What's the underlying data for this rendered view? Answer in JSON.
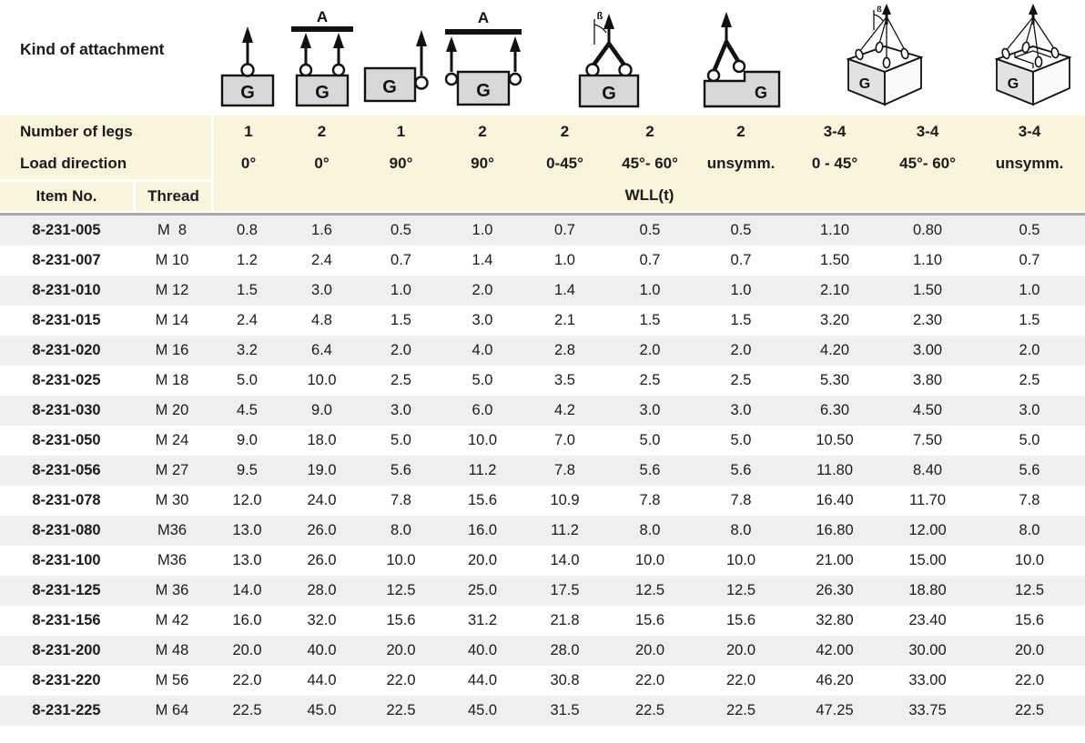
{
  "header": {
    "kind_of_attachment": "Kind of attachment",
    "number_of_legs_label": "Number of legs",
    "load_direction_label": "Load direction",
    "item_no_label": "Item No.",
    "thread_label": "Thread",
    "wll_label": "WLL(t)",
    "legs": [
      "1",
      "2",
      "1",
      "2",
      "2",
      "2",
      "2",
      "3-4",
      "3-4",
      "3-4"
    ],
    "load_directions": [
      "0°",
      "0°",
      "90°",
      "90°",
      "0-45°",
      "45°- 60°",
      "unsymm.",
      "0 - 45°",
      "45°- 60°",
      "unsymm."
    ]
  },
  "diagrams": {
    "g_label": "G",
    "a_label": "A",
    "beta_label": "ß"
  },
  "colors": {
    "header_band_bg": "#faf4dc",
    "row_stripe_bg": "#efefef",
    "separator_line": "#a8a8a8",
    "diagram_box_fill": "#d8d8d8",
    "text": "#1b1b1b"
  },
  "rows": [
    {
      "item": "8-231-005",
      "thread": "M  8",
      "values": [
        "0.8",
        "1.6",
        "0.5",
        "1.0",
        "0.7",
        "0.5",
        "0.5",
        "1.10",
        "0.80",
        "0.5"
      ]
    },
    {
      "item": "8-231-007",
      "thread": "M 10",
      "values": [
        "1.2",
        "2.4",
        "0.7",
        "1.4",
        "1.0",
        "0.7",
        "0.7",
        "1.50",
        "1.10",
        "0.7"
      ]
    },
    {
      "item": "8-231-010",
      "thread": "M 12",
      "values": [
        "1.5",
        "3.0",
        "1.0",
        "2.0",
        "1.4",
        "1.0",
        "1.0",
        "2.10",
        "1.50",
        "1.0"
      ]
    },
    {
      "item": "8-231-015",
      "thread": "M 14",
      "values": [
        "2.4",
        "4.8",
        "1.5",
        "3.0",
        "2.1",
        "1.5",
        "1.5",
        "3.20",
        "2.30",
        "1.5"
      ]
    },
    {
      "item": "8-231-020",
      "thread": "M 16",
      "values": [
        "3.2",
        "6.4",
        "2.0",
        "4.0",
        "2.8",
        "2.0",
        "2.0",
        "4.20",
        "3.00",
        "2.0"
      ]
    },
    {
      "item": "8-231-025",
      "thread": "M 18",
      "values": [
        "5.0",
        "10.0",
        "2.5",
        "5.0",
        "3.5",
        "2.5",
        "2.5",
        "5.30",
        "3.80",
        "2.5"
      ]
    },
    {
      "item": "8-231-030",
      "thread": "M 20",
      "values": [
        "4.5",
        "9.0",
        "3.0",
        "6.0",
        "4.2",
        "3.0",
        "3.0",
        "6.30",
        "4.50",
        "3.0"
      ]
    },
    {
      "item": "8-231-050",
      "thread": "M 24",
      "values": [
        "9.0",
        "18.0",
        "5.0",
        "10.0",
        "7.0",
        "5.0",
        "5.0",
        "10.50",
        "7.50",
        "5.0"
      ]
    },
    {
      "item": "8-231-056",
      "thread": "M 27",
      "values": [
        "9.5",
        "19.0",
        "5.6",
        "11.2",
        "7.8",
        "5.6",
        "5.6",
        "11.80",
        "8.40",
        "5.6"
      ]
    },
    {
      "item": "8-231-078",
      "thread": "M 30",
      "values": [
        "12.0",
        "24.0",
        "7.8",
        "15.6",
        "10.9",
        "7.8",
        "7.8",
        "16.40",
        "11.70",
        "7.8"
      ]
    },
    {
      "item": "8-231-080",
      "thread": "M36",
      "values": [
        "13.0",
        "26.0",
        "8.0",
        "16.0",
        "11.2",
        "8.0",
        "8.0",
        "16.80",
        "12.00",
        "8.0"
      ]
    },
    {
      "item": "8-231-100",
      "thread": "M36",
      "values": [
        "13.0",
        "26.0",
        "10.0",
        "20.0",
        "14.0",
        "10.0",
        "10.0",
        "21.00",
        "15.00",
        "10.0"
      ]
    },
    {
      "item": "8-231-125",
      "thread": "M 36",
      "values": [
        "14.0",
        "28.0",
        "12.5",
        "25.0",
        "17.5",
        "12.5",
        "12.5",
        "26.30",
        "18.80",
        "12.5"
      ]
    },
    {
      "item": "8-231-156",
      "thread": "M 42",
      "values": [
        "16.0",
        "32.0",
        "15.6",
        "31.2",
        "21.8",
        "15.6",
        "15.6",
        "32.80",
        "23.40",
        "15.6"
      ]
    },
    {
      "item": "8-231-200",
      "thread": "M 48",
      "values": [
        "20.0",
        "40.0",
        "20.0",
        "40.0",
        "28.0",
        "20.0",
        "20.0",
        "42.00",
        "30.00",
        "20.0"
      ]
    },
    {
      "item": "8-231-220",
      "thread": "M 56",
      "values": [
        "22.0",
        "44.0",
        "22.0",
        "44.0",
        "30.8",
        "22.0",
        "22.0",
        "46.20",
        "33.00",
        "22.0"
      ]
    },
    {
      "item": "8-231-225",
      "thread": "M 64",
      "values": [
        "22.5",
        "45.0",
        "22.5",
        "45.0",
        "31.5",
        "22.5",
        "22.5",
        "47.25",
        "33.75",
        "22.5"
      ]
    }
  ]
}
